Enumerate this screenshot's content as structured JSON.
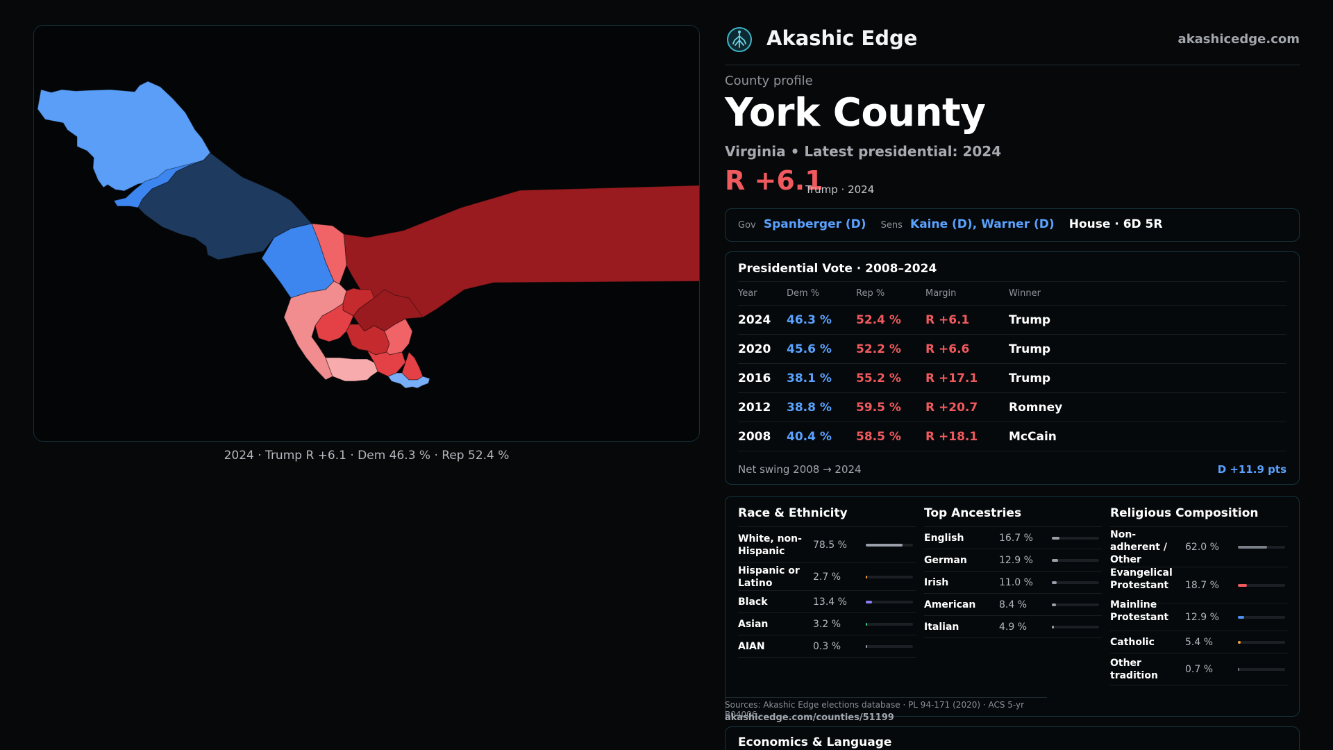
{
  "map": {
    "caption": "2024 · Trump R +6.1 · Dem 46.3 % · Rep 52.4 %",
    "colors": {
      "blue_light": "#5a9ef7",
      "blue_mid": "#3d86f0",
      "blue_dark": "#1f3a5f",
      "blue_pale": "#79aef8",
      "red_dark": "#9a1b1f",
      "red_mid": "#c42a2e",
      "red": "#e44146",
      "red_light": "#f06468",
      "red_pale": "#f28d8f",
      "red_palest": "#f7abad"
    }
  },
  "brand": {
    "name": "Akashic Edge",
    "domain": "akashicedge.com",
    "logo_icon": "tree-icon"
  },
  "profile": {
    "eyebrow": "County profile",
    "county": "York County",
    "subtitle": "Virginia • Latest presidential: 2024",
    "margin": "R +6.1",
    "margin_note": "Trump · 2024"
  },
  "officials": {
    "gov_label": "Gov",
    "gov": "Spanberger (D)",
    "sens_label": "Sens",
    "sens": "Kaine (D), Warner (D)",
    "house": "House · 6D 5R"
  },
  "presidential": {
    "title": "Presidential Vote · 2008–2024",
    "headers": [
      "Year",
      "Dem %",
      "Rep %",
      "Margin",
      "Winner"
    ],
    "rows": [
      [
        "2024",
        "46.3 %",
        "52.4 %",
        "R +6.1",
        "Trump"
      ],
      [
        "2020",
        "45.6 %",
        "52.2 %",
        "R +6.6",
        "Trump"
      ],
      [
        "2016",
        "38.1 %",
        "55.2 %",
        "R +17.1",
        "Trump"
      ],
      [
        "2012",
        "38.8 %",
        "59.5 %",
        "R +20.7",
        "Romney"
      ],
      [
        "2008",
        "40.4 %",
        "58.5 %",
        "R +18.1",
        "McCain"
      ]
    ],
    "swing_label": "Net swing 2008 → 2024",
    "swing_value": "D +11.9 pts"
  },
  "demographics": {
    "race": {
      "title": "Race & Ethnicity",
      "rows": [
        {
          "label": "White, non-Hispanic",
          "value": "78.5 %",
          "share": 0.785,
          "color": "#9aa0aa"
        },
        {
          "label": "Hispanic or Latino",
          "value": "2.7 %",
          "share": 0.027,
          "color": "#f2a23a"
        },
        {
          "label": "Black",
          "value": "13.4 %",
          "share": 0.134,
          "color": "#8a7cf5"
        },
        {
          "label": "Asian",
          "value": "3.2 %",
          "share": 0.032,
          "color": "#3ec98a"
        },
        {
          "label": "AIAN",
          "value": "0.3 %",
          "share": 0.003,
          "color": "#9aa0aa"
        }
      ]
    },
    "ancestry": {
      "title": "Top Ancestries",
      "rows": [
        {
          "label": "English",
          "value": "16.7 %",
          "share": 0.167,
          "color": "#9aa0aa"
        },
        {
          "label": "German",
          "value": "12.9 %",
          "share": 0.129,
          "color": "#9aa0aa"
        },
        {
          "label": "Irish",
          "value": "11.0 %",
          "share": 0.11,
          "color": "#9aa0aa"
        },
        {
          "label": "American",
          "value": "8.4 %",
          "share": 0.084,
          "color": "#9aa0aa"
        },
        {
          "label": "Italian",
          "value": "4.9 %",
          "share": 0.049,
          "color": "#9aa0aa"
        }
      ]
    },
    "religion": {
      "title": "Religious Composition",
      "rows": [
        {
          "label": "Non-adherent / Other",
          "value": "62.0 %",
          "share": 0.62,
          "color": "#7a808a"
        },
        {
          "label": "Evangelical Protestant",
          "value": "18.7 %",
          "share": 0.187,
          "color": "#f05a5e"
        },
        {
          "label": "Mainline Protestant",
          "value": "12.9 %",
          "share": 0.129,
          "color": "#4a8ff0"
        },
        {
          "label": "Catholic",
          "value": "5.4 %",
          "share": 0.054,
          "color": "#f2a23a"
        },
        {
          "label": "Other tradition",
          "value": "0.7 %",
          "share": 0.007,
          "color": "#7a808a"
        }
      ]
    }
  },
  "sources": {
    "text": "Sources: Akashic Edge elections database · PL 94-171 (2020) · ACS 5-yr B04006",
    "url": "akashicedge.com/counties/51199"
  },
  "economics": {
    "title": "Economics & Language"
  }
}
